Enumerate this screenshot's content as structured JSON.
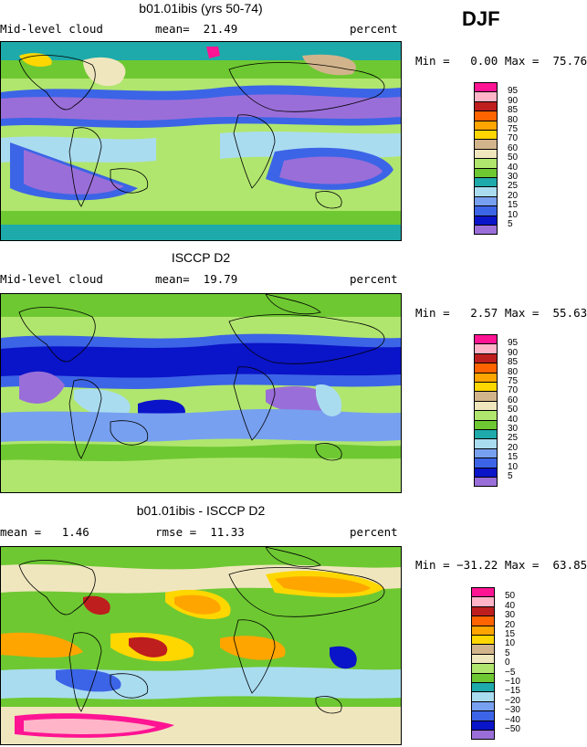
{
  "season": "DJF",
  "panels": [
    {
      "title": "b01.01ibis (yrs 50-74)",
      "left_label": "Mid-level cloud",
      "center_label": "mean=  21.49",
      "units": "percent",
      "minmax": "Min =   0.00 Max =  75.76",
      "palette": [
        "#9a6ed8",
        "#0a14c8",
        "#3c64e6",
        "#78a0f0",
        "#aadcf0",
        "#1eaaaa",
        "#6ec832",
        "#b0e66e",
        "#f0e6be",
        "#d2b48c",
        "#ffd700",
        "#ffa500",
        "#ff6400",
        "#be1e1e",
        "#ffb4c8",
        "#ff1493"
      ],
      "legend_labels": [
        "95",
        "90",
        "85",
        "80",
        "75",
        "70",
        "60",
        "50",
        "40",
        "30",
        "25",
        "20",
        "15",
        "10",
        "5"
      ]
    },
    {
      "title": "ISCCP D2",
      "left_label": "Mid-level cloud",
      "center_label": "mean=  19.79",
      "units": "percent",
      "minmax": "Min =   2.57 Max =  55.63",
      "palette": [
        "#9a6ed8",
        "#0a14c8",
        "#3c64e6",
        "#78a0f0",
        "#aadcf0",
        "#1eaaaa",
        "#6ec832",
        "#b0e66e",
        "#f0e6be",
        "#d2b48c",
        "#ffd700",
        "#ffa500",
        "#ff6400",
        "#be1e1e",
        "#ffb4c8",
        "#ff1493"
      ],
      "legend_labels": [
        "95",
        "90",
        "85",
        "80",
        "75",
        "70",
        "60",
        "50",
        "40",
        "30",
        "25",
        "20",
        "15",
        "10",
        "5"
      ]
    },
    {
      "title": "b01.01ibis - ISCCP D2",
      "left_label": "mean =   1.46",
      "center_label": "rmse =  11.33",
      "units": "percent",
      "minmax": "Min = −31.22 Max =  63.85",
      "palette": [
        "#9a6ed8",
        "#0a14c8",
        "#3c64e6",
        "#78a0f0",
        "#aadcf0",
        "#1eaaaa",
        "#6ec832",
        "#b0e66e",
        "#f0e6be",
        "#d2b48c",
        "#ffd700",
        "#ffa500",
        "#ff6400",
        "#be1e1e",
        "#ffb4c8",
        "#ff1493"
      ],
      "legend_labels": [
        "50",
        "40",
        "30",
        "20",
        "15",
        "10",
        "5",
        "0",
        "−5",
        "−10",
        "−15",
        "−20",
        "−30",
        "−40",
        "−50"
      ]
    }
  ],
  "chart_data": [
    {
      "type": "heatmap",
      "title": "b01.01ibis (yrs 50-74)",
      "variable": "Mid-level cloud",
      "units": "percent",
      "mean": 21.49,
      "min": 0.0,
      "max": 75.76,
      "contour_levels": [
        5,
        10,
        15,
        20,
        25,
        30,
        40,
        50,
        60,
        70,
        75,
        80,
        85,
        90,
        95
      ]
    },
    {
      "type": "heatmap",
      "title": "ISCCP D2",
      "variable": "Mid-level cloud",
      "units": "percent",
      "mean": 19.79,
      "min": 2.57,
      "max": 55.63,
      "contour_levels": [
        5,
        10,
        15,
        20,
        25,
        30,
        40,
        50,
        60,
        70,
        75,
        80,
        85,
        90,
        95
      ]
    },
    {
      "type": "heatmap",
      "title": "b01.01ibis - ISCCP D2",
      "units": "percent",
      "mean": 1.46,
      "rmse": 11.33,
      "min": -31.22,
      "max": 63.85,
      "contour_levels": [
        -50,
        -40,
        -30,
        -20,
        -15,
        -10,
        -5,
        0,
        5,
        10,
        15,
        20,
        30,
        40,
        50
      ]
    }
  ]
}
